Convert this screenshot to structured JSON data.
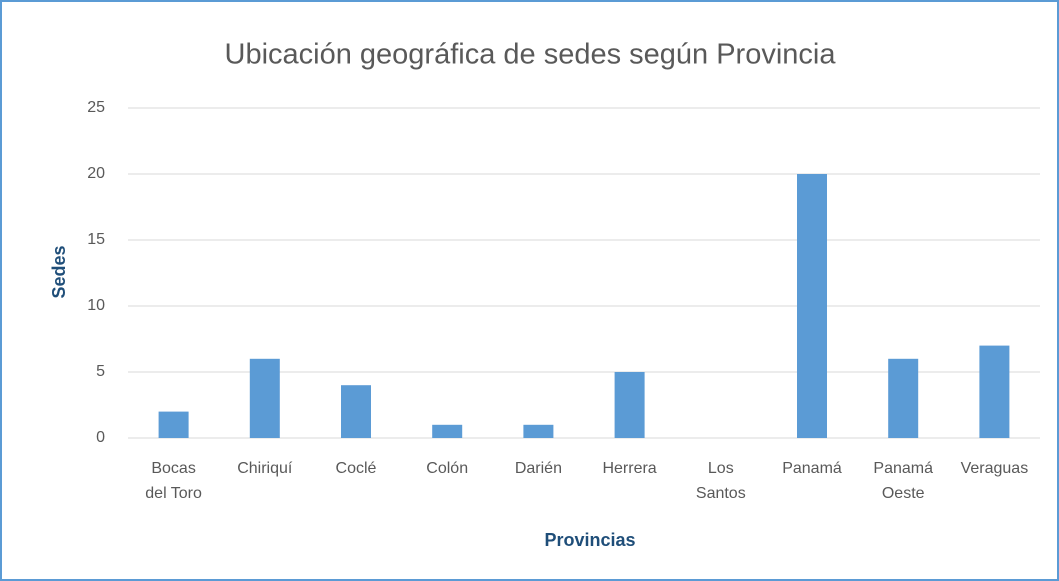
{
  "chart_data": {
    "type": "bar",
    "title": "Ubicación geográfica de sedes según Provincia",
    "x_label": "Provincias",
    "y_label": "Sedes",
    "categories": [
      "Bocas del Toro",
      "Chiriquí",
      "Coclé",
      "Colón",
      "Darién",
      "Herrera",
      "Los Santos",
      "Panamá",
      "Panamá Oeste",
      "Veraguas"
    ],
    "values": [
      2,
      6,
      4,
      1,
      1,
      5,
      0,
      20,
      6,
      7
    ],
    "color": "#5b9bd5",
    "ylim": [
      0,
      25
    ],
    "yticks": [
      0,
      5,
      10,
      15,
      20,
      25
    ],
    "grid": true
  }
}
